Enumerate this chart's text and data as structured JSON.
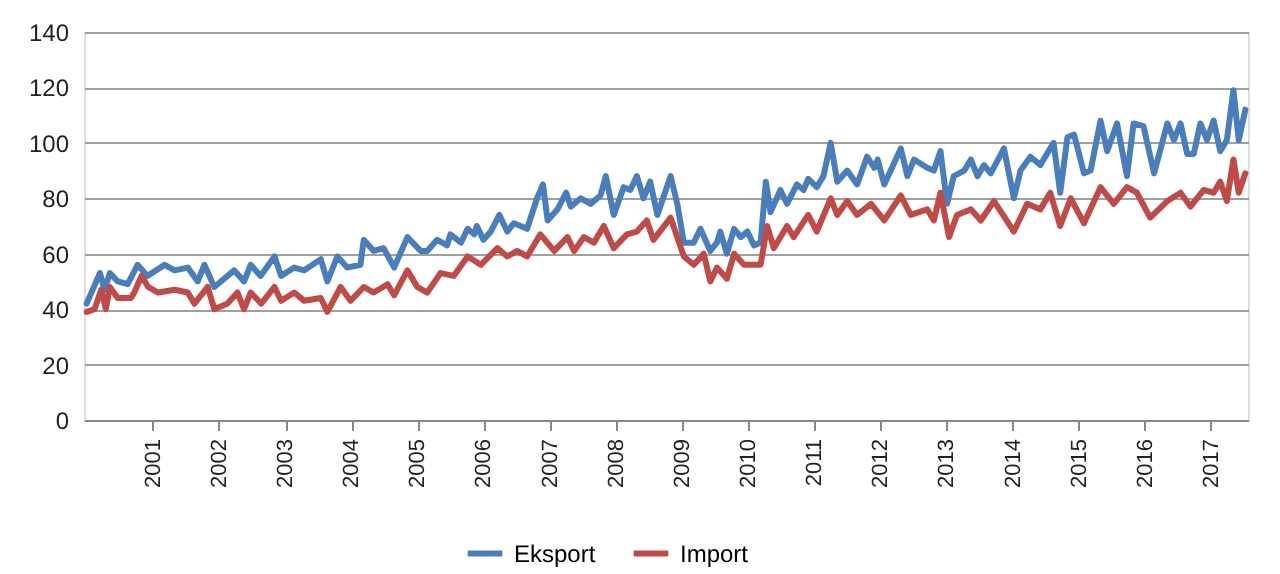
{
  "chart_data": {
    "type": "line",
    "legend": "bottom",
    "grid": "y",
    "line_style": "solid",
    "marker": "none",
    "xlim": [
      1999.96,
      2017.56
    ],
    "xticks": [
      2001,
      2002,
      2003,
      2004,
      2005,
      2006,
      2007,
      2008,
      2009,
      2010,
      2011,
      2012,
      2013,
      2014,
      2015,
      2016,
      2017
    ],
    "ylim": [
      0,
      140
    ],
    "yticks": [
      0,
      20,
      40,
      60,
      80,
      100,
      120,
      140
    ],
    "series": [
      {
        "name": "Eksport",
        "color": "#4a7ebb",
        "x": [
          2000.0,
          2000.2,
          2000.27,
          2000.35,
          2000.47,
          2000.62,
          2000.77,
          2000.92,
          2001.18,
          2001.33,
          2001.53,
          2001.68,
          2001.78,
          2001.93,
          2002.23,
          2002.38,
          2002.48,
          2002.63,
          2002.84,
          2002.94,
          2003.14,
          2003.29,
          2003.54,
          2003.64,
          2003.79,
          2003.94,
          2004.14,
          2004.19,
          2004.34,
          2004.49,
          2004.65,
          2004.85,
          2005.05,
          2005.15,
          2005.3,
          2005.45,
          2005.5,
          2005.66,
          2005.76,
          2005.86,
          2005.9,
          2006.0,
          2006.11,
          2006.24,
          2006.36,
          2006.46,
          2006.66,
          2006.81,
          2006.9,
          2006.97,
          2007.12,
          2007.25,
          2007.32,
          2007.47,
          2007.62,
          2007.77,
          2007.85,
          2007.97,
          2008.12,
          2008.22,
          2008.32,
          2008.42,
          2008.52,
          2008.63,
          2008.83,
          2008.93,
          2009.03,
          2009.18,
          2009.28,
          2009.43,
          2009.53,
          2009.58,
          2009.68,
          2009.79,
          2009.89,
          2009.99,
          2010.09,
          2010.19,
          2010.27,
          2010.34,
          2010.49,
          2010.59,
          2010.74,
          2010.84,
          2010.91,
          2011.04,
          2011.14,
          2011.25,
          2011.35,
          2011.5,
          2011.65,
          2011.8,
          2011.91,
          2011.96,
          2012.06,
          2012.31,
          2012.41,
          2012.51,
          2012.71,
          2012.81,
          2012.91,
          2013.01,
          2013.11,
          2013.27,
          2013.37,
          2013.47,
          2013.57,
          2013.67,
          2013.87,
          2014.02,
          2014.12,
          2014.27,
          2014.42,
          2014.62,
          2014.72,
          2014.83,
          2014.93,
          2015.08,
          2015.18,
          2015.33,
          2015.43,
          2015.58,
          2015.73,
          2015.83,
          2015.98,
          2016.14,
          2016.34,
          2016.44,
          2016.54,
          2016.64,
          2016.74,
          2016.84,
          2016.94,
          2017.04,
          2017.14,
          2017.24,
          2017.34,
          2017.42,
          2017.52
        ],
        "values": [
          42,
          53,
          47,
          53,
          50,
          49,
          56,
          52,
          56,
          54,
          55,
          50,
          56,
          48,
          54,
          50,
          56,
          52,
          59,
          52,
          55,
          54,
          58,
          50,
          59,
          55,
          56,
          65,
          61,
          62,
          55,
          66,
          61,
          61,
          65,
          63,
          67,
          64,
          69,
          67,
          70,
          65,
          68,
          74,
          68,
          71,
          69,
          80,
          85,
          72,
          76,
          82,
          77,
          80,
          78,
          81,
          88,
          74,
          84,
          83,
          88,
          80,
          86,
          74,
          88,
          78,
          64,
          64,
          69,
          61,
          64,
          68,
          60,
          69,
          66,
          68,
          63,
          64,
          86,
          75,
          83,
          78,
          85,
          83,
          87,
          84,
          88,
          100,
          86,
          90,
          85,
          95,
          91,
          94,
          85,
          98,
          88,
          94,
          91,
          90,
          97,
          78,
          88,
          90,
          94,
          88,
          92,
          89,
          98,
          80,
          90,
          95,
          92,
          100,
          82,
          102,
          103,
          89,
          90,
          108,
          97,
          107,
          88,
          107,
          106,
          89,
          107,
          101,
          107,
          96,
          96,
          107,
          101,
          108,
          97,
          101,
          119,
          101,
          112
        ]
      },
      {
        "name": "Import",
        "color": "#be4b48",
        "x": [
          2000.0,
          2000.12,
          2000.22,
          2000.29,
          2000.35,
          2000.47,
          2000.67,
          2000.72,
          2000.83,
          2000.93,
          2001.08,
          2001.33,
          2001.53,
          2001.63,
          2001.83,
          2001.93,
          2002.13,
          2002.28,
          2002.38,
          2002.48,
          2002.64,
          2002.84,
          2002.94,
          2003.14,
          2003.29,
          2003.54,
          2003.64,
          2003.84,
          2003.99,
          2004.19,
          2004.34,
          2004.55,
          2004.65,
          2004.85,
          2005.0,
          2005.15,
          2005.35,
          2005.55,
          2005.76,
          2005.96,
          2006.21,
          2006.36,
          2006.51,
          2006.66,
          2006.86,
          2007.07,
          2007.27,
          2007.37,
          2007.52,
          2007.67,
          2007.82,
          2007.97,
          2008.17,
          2008.32,
          2008.47,
          2008.57,
          2008.83,
          2009.03,
          2009.18,
          2009.33,
          2009.43,
          2009.53,
          2009.68,
          2009.79,
          2009.94,
          2010.19,
          2010.29,
          2010.39,
          2010.59,
          2010.69,
          2010.91,
          2011.04,
          2011.25,
          2011.35,
          2011.5,
          2011.65,
          2011.86,
          2012.06,
          2012.31,
          2012.46,
          2012.71,
          2012.81,
          2012.91,
          2013.04,
          2013.16,
          2013.37,
          2013.52,
          2013.72,
          2014.02,
          2014.22,
          2014.42,
          2014.57,
          2014.72,
          2014.88,
          2015.08,
          2015.33,
          2015.53,
          2015.73,
          2015.88,
          2016.08,
          2016.34,
          2016.54,
          2016.69,
          2016.89,
          2017.04,
          2017.14,
          2017.24,
          2017.34,
          2017.42,
          2017.52
        ],
        "values": [
          39,
          40,
          47,
          40,
          48,
          44,
          44,
          46,
          52,
          48,
          46,
          47,
          46,
          42,
          48,
          40,
          42,
          46,
          40,
          46,
          42,
          48,
          43,
          46,
          43,
          44,
          39,
          48,
          43,
          48,
          46,
          49,
          45,
          54,
          48,
          46,
          53,
          52,
          59,
          56,
          62,
          59,
          61,
          59,
          67,
          61,
          66,
          61,
          66,
          64,
          70,
          62,
          67,
          68,
          72,
          65,
          73,
          59,
          56,
          60,
          50,
          55,
          51,
          60,
          56,
          56,
          70,
          62,
          70,
          66,
          74,
          68,
          80,
          74,
          79,
          74,
          78,
          72,
          81,
          74,
          76,
          72,
          82,
          66,
          74,
          76,
          72,
          79,
          68,
          78,
          76,
          82,
          70,
          80,
          71,
          84,
          78,
          84,
          82,
          73,
          79,
          82,
          77,
          83,
          82,
          86,
          79,
          94,
          82,
          89
        ]
      }
    ]
  }
}
